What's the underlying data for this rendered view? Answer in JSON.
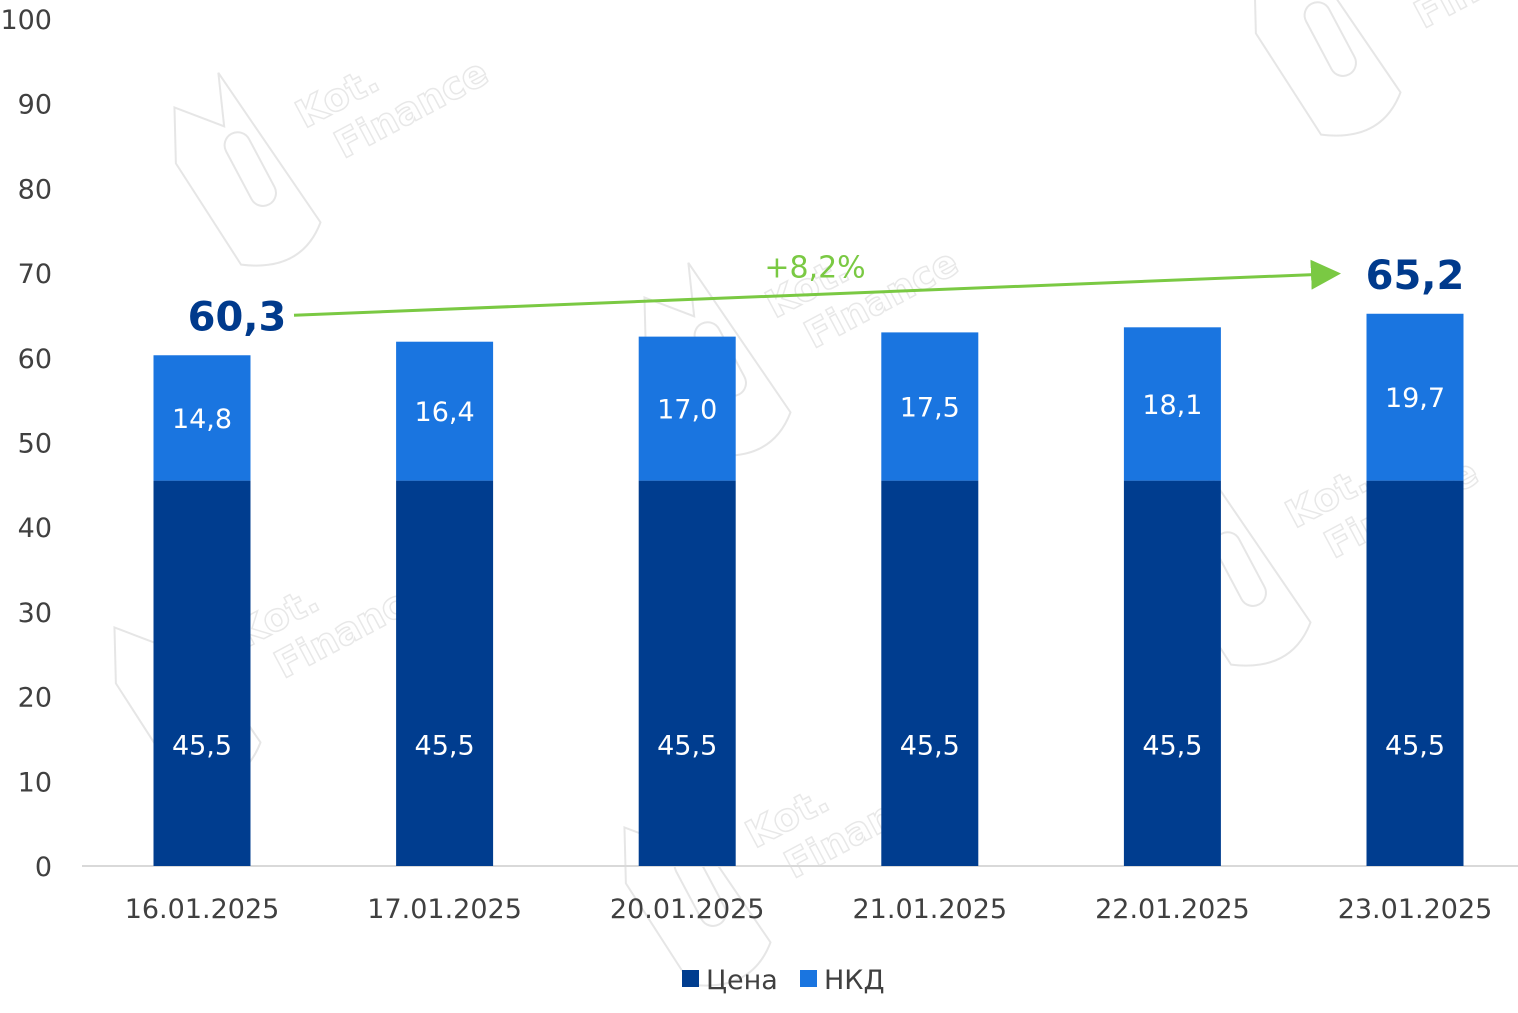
{
  "chart_data": {
    "type": "bar",
    "stacked": true,
    "categories": [
      "16.01.2025",
      "17.01.2025",
      "20.01.2025",
      "21.01.2025",
      "22.01.2025",
      "23.01.2025"
    ],
    "series": [
      {
        "name": "Цена",
        "values": [
          45.5,
          45.5,
          45.5,
          45.5,
          45.5,
          45.5
        ],
        "labels": [
          "45,5",
          "45,5",
          "45,5",
          "45,5",
          "45,5",
          "45,5"
        ],
        "color": "#003d8f"
      },
      {
        "name": "НКД",
        "values": [
          14.8,
          16.4,
          17.0,
          17.5,
          18.1,
          19.7
        ],
        "labels": [
          "14,8",
          "16,4",
          "17,0",
          "17,5",
          "18,1",
          "19,7"
        ],
        "color": "#1a75e0"
      }
    ],
    "y_ticks": [
      "0",
      "10",
      "20",
      "30",
      "40",
      "50",
      "60",
      "70",
      "80",
      "90",
      "100"
    ],
    "ylim": [
      0,
      100
    ],
    "annotations": {
      "start_total": {
        "label": "60,3",
        "value": 60.3,
        "category_index": 0
      },
      "end_total": {
        "label": "65,2",
        "value": 65.2,
        "category_index": 5
      },
      "growth": {
        "label": "+8,2%",
        "color": "#7ac943"
      }
    },
    "legend": "bottom",
    "grid": false
  },
  "watermark": {
    "line1": "Kot.",
    "line2": "Finance"
  }
}
